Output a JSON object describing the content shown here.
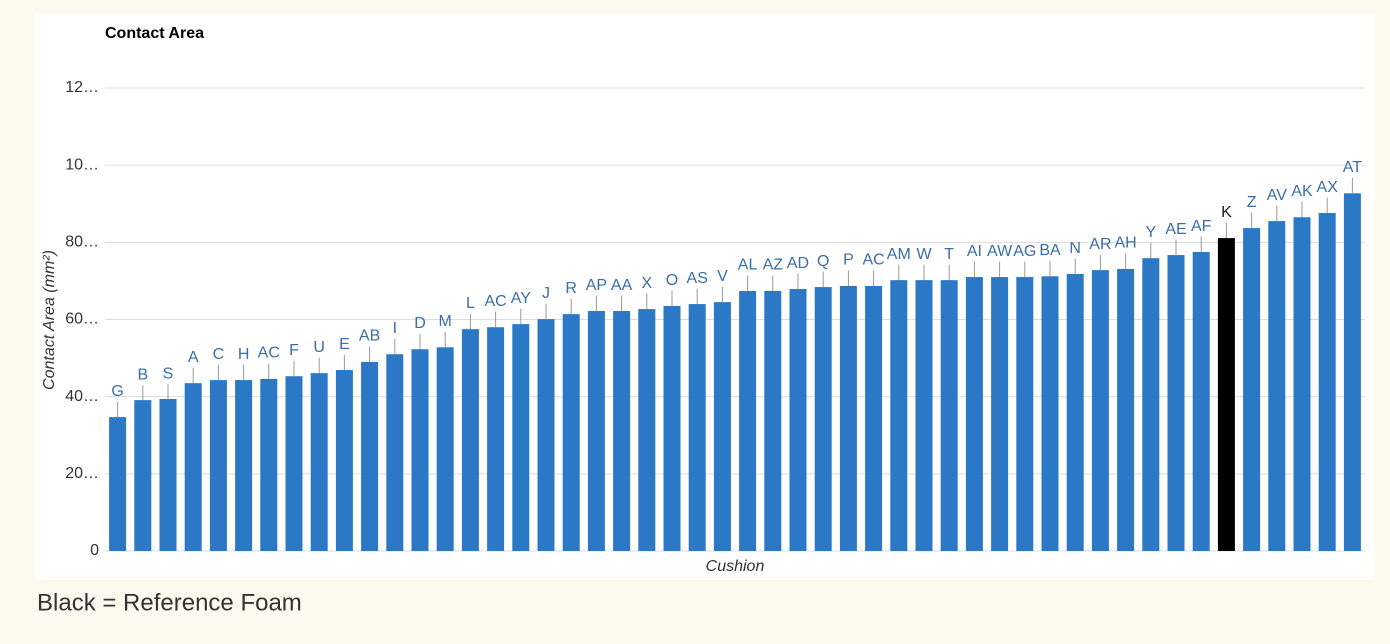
{
  "chart_data": {
    "type": "bar",
    "title": "Contact Area",
    "y_label": "Contact Area (mm²)",
    "x_label": "Cushion",
    "note": "Black = Reference Foam",
    "categories": [
      "G",
      "B",
      "S",
      "A",
      "C",
      "H",
      "AC",
      "F",
      "U",
      "E",
      "AB",
      "I",
      "D",
      "M",
      "L",
      "AC",
      "AY",
      "J",
      "R",
      "AP",
      "AA",
      "X",
      "O",
      "AS",
      "V",
      "AL",
      "AZ",
      "AD",
      "Q",
      "P",
      "AC",
      "AM",
      "W",
      "T",
      "AI",
      "AW",
      "AG",
      "BA",
      "N",
      "AR",
      "AH",
      "Y",
      "AE",
      "AF",
      "K",
      "Z",
      "AV",
      "AK",
      "AX",
      "AT"
    ],
    "values": [
      347,
      391,
      394,
      435,
      443,
      443,
      446,
      453,
      461,
      469,
      490,
      510,
      523,
      528,
      575,
      580,
      588,
      601,
      614,
      622,
      622,
      627,
      635,
      640,
      645,
      674,
      674,
      679,
      684,
      687,
      687,
      702,
      702,
      702,
      710,
      710,
      710,
      712,
      718,
      728,
      731,
      759,
      767,
      775,
      811,
      837,
      855,
      865,
      876,
      927
    ],
    "errors": [
      40,
      38,
      38,
      40,
      40,
      40,
      40,
      40,
      40,
      40,
      40,
      40,
      40,
      40,
      40,
      40,
      40,
      40,
      40,
      40,
      40,
      40,
      40,
      40,
      40,
      40,
      40,
      40,
      40,
      40,
      40,
      40,
      40,
      40,
      40,
      40,
      40,
      40,
      40,
      40,
      40,
      40,
      40,
      40,
      40,
      40,
      40,
      40,
      40,
      40
    ],
    "colors": [
      "#2a78c6",
      "#2a78c6",
      "#2a78c6",
      "#2a78c6",
      "#2a78c6",
      "#2a78c6",
      "#2a78c6",
      "#2a78c6",
      "#2a78c6",
      "#2a78c6",
      "#2a78c6",
      "#2a78c6",
      "#2a78c6",
      "#2a78c6",
      "#2a78c6",
      "#2a78c6",
      "#2a78c6",
      "#2a78c6",
      "#2a78c6",
      "#2a78c6",
      "#2a78c6",
      "#2a78c6",
      "#2a78c6",
      "#2a78c6",
      "#2a78c6",
      "#2a78c6",
      "#2a78c6",
      "#2a78c6",
      "#2a78c6",
      "#2a78c6",
      "#2a78c6",
      "#2a78c6",
      "#2a78c6",
      "#2a78c6",
      "#2a78c6",
      "#2a78c6",
      "#2a78c6",
      "#2a78c6",
      "#2a78c6",
      "#2a78c6",
      "#2a78c6",
      "#2a78c6",
      "#2a78c6",
      "#2a78c6",
      "#000000",
      "#2a78c6",
      "#2a78c6",
      "#2a78c6",
      "#2a78c6",
      "#2a78c6"
    ],
    "ylim": [
      0,
      1200
    ],
    "yticks": [
      0,
      {
        "value": 200,
        "label": "20…"
      },
      {
        "value": 400,
        "label": "40…"
      },
      {
        "value": 600,
        "label": "60…"
      },
      {
        "value": 800,
        "label": "80…"
      },
      {
        "value": 1000,
        "label": "10…"
      },
      {
        "value": 1200,
        "label": "12…"
      }
    ],
    "grid": true
  }
}
